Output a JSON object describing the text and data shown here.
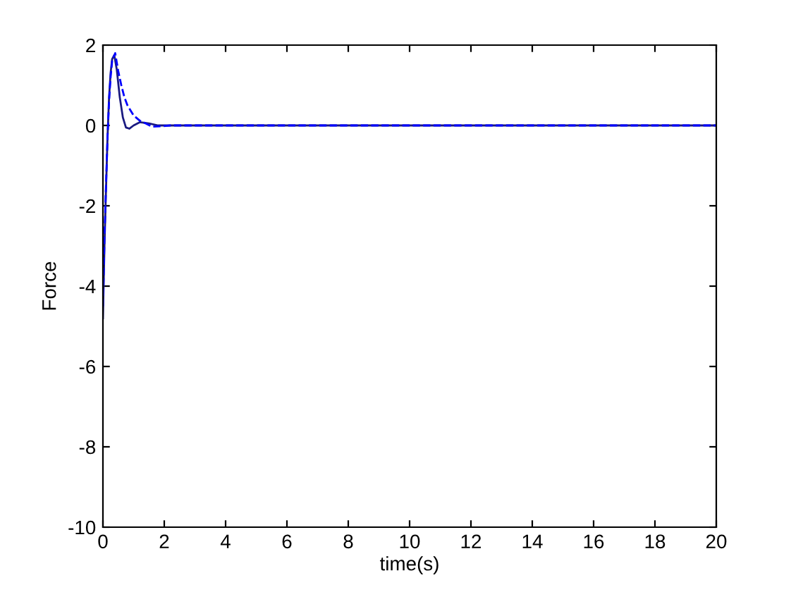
{
  "chart_data": {
    "type": "line",
    "xlabel": "time(s)",
    "ylabel": "Force",
    "xlim": [
      0,
      20
    ],
    "ylim": [
      -10,
      2
    ],
    "xticks": [
      0,
      2,
      4,
      6,
      8,
      10,
      12,
      14,
      16,
      18,
      20
    ],
    "yticks": [
      -10,
      -8,
      -6,
      -4,
      -2,
      0,
      2
    ],
    "grid": false,
    "series": [
      {
        "color": "#1a1a80",
        "line_style": "solid",
        "x": [
          0,
          0.05,
          0.1,
          0.15,
          0.2,
          0.25,
          0.3,
          0.37,
          0.45,
          0.55,
          0.65,
          0.75,
          0.86,
          1.0,
          1.2,
          1.5,
          1.8,
          2.2,
          5,
          10,
          15,
          20
        ],
        "values": [
          -4.8,
          -3.0,
          -1.6,
          -0.3,
          0.7,
          1.3,
          1.65,
          1.75,
          1.4,
          0.7,
          0.2,
          -0.05,
          -0.08,
          0.0,
          0.08,
          0.05,
          0.0,
          0.0,
          0.0,
          0.0,
          0.0,
          0.0
        ]
      },
      {
        "color": "#0000ff",
        "line_style": "dashed",
        "x": [
          0,
          0.05,
          0.1,
          0.15,
          0.2,
          0.25,
          0.3,
          0.4,
          0.5,
          0.6,
          0.7,
          0.8,
          1.0,
          1.2,
          1.4,
          1.6,
          1.9,
          2.2,
          5,
          10,
          15,
          20
        ],
        "values": [
          -4.5,
          -2.8,
          -1.5,
          -0.3,
          0.6,
          1.2,
          1.6,
          1.8,
          1.35,
          1.0,
          0.7,
          0.5,
          0.25,
          0.12,
          0.05,
          -0.03,
          -0.02,
          0.0,
          0.0,
          0.0,
          0.0,
          0.0
        ]
      }
    ]
  }
}
